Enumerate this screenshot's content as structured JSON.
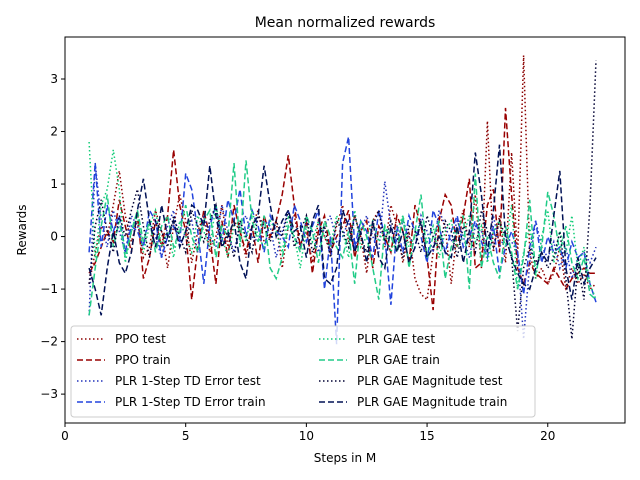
{
  "chart_data": {
    "type": "line",
    "title": "Mean normalized rewards",
    "xlabel": "Steps in M",
    "ylabel": "Rewards",
    "xlim": [
      0,
      23.2
    ],
    "ylim": [
      -3.55,
      3.8
    ],
    "xticks": [
      0,
      5,
      10,
      15,
      20
    ],
    "yticks": [
      -3,
      -2,
      -1,
      0,
      1,
      2,
      3
    ],
    "grid": false,
    "legend": "lower-left, two columns",
    "x": [
      1.0,
      1.25,
      1.5,
      1.75,
      2.0,
      2.25,
      2.5,
      2.75,
      3.0,
      3.25,
      3.5,
      3.75,
      4.0,
      4.25,
      4.5,
      4.75,
      5.0,
      5.25,
      5.5,
      5.75,
      6.0,
      6.25,
      6.5,
      6.75,
      7.0,
      7.25,
      7.5,
      7.75,
      8.0,
      8.25,
      8.5,
      8.75,
      9.0,
      9.25,
      9.5,
      9.75,
      10.0,
      10.25,
      10.5,
      10.75,
      11.0,
      11.25,
      11.5,
      11.75,
      12.0,
      12.25,
      12.5,
      12.75,
      13.0,
      13.25,
      13.5,
      13.75,
      14.0,
      14.25,
      14.5,
      14.75,
      15.0,
      15.25,
      15.5,
      15.75,
      16.0,
      16.25,
      16.5,
      16.75,
      17.0,
      17.25,
      17.5,
      17.75,
      18.0,
      18.25,
      18.5,
      18.75,
      19.0,
      19.25,
      19.5,
      19.75,
      20.0,
      20.25,
      20.5,
      20.75,
      21.0,
      21.25,
      21.5,
      21.75,
      22.0
    ],
    "series": [
      {
        "name": "PPO test",
        "color": "#8b0000",
        "dash": "dotted",
        "values": [
          -0.9,
          -0.3,
          0.2,
          0.0,
          0.6,
          1.25,
          0.4,
          -0.1,
          0.3,
          -0.4,
          -0.2,
          0.5,
          0.1,
          -0.6,
          0.2,
          0.8,
          0.3,
          -0.5,
          0.1,
          0.4,
          -0.3,
          0.0,
          0.6,
          -0.2,
          0.3,
          0.1,
          -0.4,
          0.2,
          0.5,
          -0.1,
          0.0,
          0.3,
          -0.6,
          0.2,
          0.4,
          -0.2,
          0.1,
          -0.5,
          0.3,
          0.0,
          -0.3,
          0.2,
          0.6,
          -0.1,
          0.4,
          0.0,
          -0.7,
          0.3,
          0.5,
          -0.2,
          0.6,
          0.2,
          -0.5,
          0.1,
          -0.8,
          -1.1,
          -1.2,
          -0.3,
          0.4,
          0.2,
          -0.9,
          0.1,
          0.5,
          -0.2,
          0.8,
          -0.6,
          2.2,
          -0.3,
          0.4,
          -0.5,
          1.6,
          -0.4,
          3.45,
          -0.3,
          -0.8,
          -0.6,
          -0.9,
          -0.7,
          -0.2,
          -1.0,
          -0.6,
          -0.9,
          -0.7,
          -1.0,
          -0.9
        ]
      },
      {
        "name": "PPO train",
        "color": "#990000",
        "dash": "dashed",
        "values": [
          -0.7,
          -0.5,
          -0.2,
          0.1,
          -0.1,
          0.7,
          0.2,
          -0.3,
          0.5,
          -0.8,
          -0.4,
          0.3,
          -0.2,
          0.4,
          1.65,
          0.6,
          0.1,
          -1.2,
          -0.2,
          0.5,
          0.0,
          -0.9,
          0.3,
          -0.4,
          0.6,
          0.1,
          -0.3,
          0.2,
          -0.5,
          0.4,
          0.0,
          0.3,
          0.8,
          1.55,
          0.6,
          -0.2,
          0.3,
          -0.7,
          0.1,
          0.4,
          -0.3,
          0.0,
          0.2,
          0.5,
          -0.4,
          0.1,
          0.3,
          -0.6,
          0.2,
          0.0,
          -0.3,
          0.4,
          0.1,
          -0.5,
          0.6,
          0.2,
          -0.4,
          -1.4,
          0.3,
          0.8,
          0.6,
          -0.2,
          0.4,
          1.1,
          -0.6,
          -0.5,
          0.6,
          0.9,
          -0.3,
          2.45,
          0.8,
          -0.6,
          -0.9,
          -0.5,
          -0.7,
          -0.8,
          -0.9,
          -0.6,
          -0.8,
          -1.0,
          -0.8,
          -0.7,
          -0.6,
          -0.7,
          -0.7
        ]
      },
      {
        "name": "PLR 1-Step TD Error test",
        "color": "#2233bb",
        "dash": "dotted",
        "values": [
          -1.5,
          1.4,
          0.3,
          -0.2,
          0.5,
          0.1,
          -0.3,
          0.4,
          0.2,
          -0.1,
          0.3,
          0.0,
          -0.4,
          0.2,
          0.5,
          -0.2,
          0.1,
          0.3,
          -0.3,
          0.4,
          0.0,
          -0.2,
          0.6,
          0.1,
          -0.3,
          0.2,
          0.4,
          0.0,
          -0.1,
          0.3,
          0.2,
          -0.4,
          0.1,
          0.5,
          0.0,
          -0.2,
          0.3,
          0.1,
          -0.3,
          0.2,
          0.4,
          -0.1,
          0.0,
          0.3,
          -0.2,
          0.1,
          0.4,
          0.0,
          -0.3,
          1.05,
          0.2,
          -0.1,
          0.3,
          0.0,
          -0.2,
          0.4,
          0.1,
          -0.3,
          0.5,
          0.2,
          -0.1,
          0.3,
          0.0,
          -0.4,
          0.2,
          0.1,
          -0.3,
          0.4,
          -0.2,
          0.0,
          -0.1,
          -0.3,
          -1.95,
          -0.5,
          0.3,
          -0.2,
          -0.4,
          -0.1,
          -0.6,
          -0.2,
          -0.8,
          -0.4,
          -0.3,
          -0.5,
          -0.2
        ]
      },
      {
        "name": "PLR 1-Step TD Error train",
        "color": "#2244dd",
        "dash": "dashed",
        "values": [
          -0.3,
          1.4,
          -0.2,
          0.6,
          0.1,
          0.4,
          -0.3,
          0.2,
          0.1,
          -0.2,
          0.5,
          0.3,
          -0.4,
          0.0,
          0.2,
          -0.1,
          1.2,
          0.9,
          0.1,
          -0.9,
          0.2,
          0.6,
          -0.1,
          0.7,
          0.3,
          0.9,
          0.0,
          0.5,
          0.2,
          -0.3,
          0.4,
          0.1,
          0.0,
          -0.2,
          0.6,
          0.3,
          -0.1,
          0.2,
          0.5,
          -1.0,
          0.0,
          -2.05,
          1.4,
          1.9,
          -0.2,
          0.3,
          0.1,
          -0.4,
          0.5,
          0.0,
          -1.3,
          0.2,
          -0.3,
          0.4,
          0.1,
          0.0,
          -0.5,
          0.5,
          0.2,
          -0.3,
          0.1,
          0.4,
          -0.2,
          0.0,
          0.3,
          -0.1,
          -0.4,
          0.2,
          -0.7,
          -0.2,
          0.1,
          -0.3,
          -1.1,
          -0.2,
          0.3,
          -0.5,
          0.0,
          -0.3,
          -0.2,
          -0.6,
          -0.1,
          -0.4,
          -0.3,
          -0.9,
          -1.25
        ]
      },
      {
        "name": "PLR GAE test",
        "color": "#11cc77",
        "dash": "dotted",
        "values": [
          1.8,
          -0.4,
          0.6,
          0.9,
          1.65,
          0.9,
          -0.5,
          0.1,
          0.4,
          -0.3,
          0.2,
          0.5,
          -0.2,
          0.1,
          -0.4,
          0.3,
          0.0,
          -0.3,
          0.4,
          0.1,
          -0.2,
          0.6,
          0.0,
          -0.4,
          0.2,
          0.3,
          -0.1,
          0.5,
          0.0,
          -0.2,
          0.3,
          0.1,
          -0.3,
          0.4,
          0.0,
          -0.6,
          0.2,
          -0.1,
          0.3,
          0.0,
          -0.2,
          0.4,
          0.1,
          -0.4,
          0.5,
          -0.2,
          0.0,
          0.3,
          -0.1,
          0.2,
          -0.3,
          0.1,
          0.4,
          -0.2,
          0.0,
          0.3,
          -0.1,
          0.2,
          -0.4,
          0.1,
          0.3,
          -0.2,
          0.0,
          0.4,
          -0.1,
          0.2,
          -0.5,
          0.1,
          0.3,
          -0.2,
          0.6,
          -1.0,
          -0.3,
          0.2,
          -0.8,
          0.0,
          0.5,
          -0.5,
          0.1,
          -0.3,
          0.4,
          -0.6,
          -0.2,
          -0.9,
          -1.2
        ]
      },
      {
        "name": "PLR GAE train",
        "color": "#22cc88",
        "dash": "dashed",
        "values": [
          -1.5,
          -0.6,
          0.2,
          0.8,
          -0.2,
          0.3,
          -0.4,
          0.1,
          0.5,
          -0.1,
          0.3,
          -0.3,
          0.2,
          0.4,
          -0.2,
          0.1,
          0.6,
          0.0,
          -0.3,
          0.3,
          0.5,
          -0.4,
          0.2,
          0.0,
          1.4,
          -0.2,
          1.45,
          0.3,
          -0.1,
          0.4,
          -0.6,
          -0.8,
          -0.4,
          0.2,
          0.0,
          -0.3,
          0.4,
          0.1,
          -0.5,
          0.3,
          0.0,
          -0.2,
          -0.4,
          0.1,
          -0.9,
          0.3,
          0.0,
          -0.6,
          -1.2,
          0.2,
          0.0,
          -0.3,
          0.4,
          -0.6,
          0.1,
          0.8,
          -0.4,
          0.0,
          0.3,
          -0.8,
          -0.2,
          0.1,
          0.4,
          -1.0,
          1.2,
          -0.6,
          0.0,
          -0.5,
          -0.8,
          0.2,
          -0.3,
          -1.0,
          -0.4,
          0.7,
          -0.7,
          -0.2,
          0.85,
          0.4,
          -0.3,
          0.2,
          -0.5,
          -0.8,
          -0.4,
          -1.1,
          -1.2
        ]
      },
      {
        "name": "PLR GAE Magnitude test",
        "color": "#000033",
        "dash": "dotted",
        "values": [
          -0.9,
          0.2,
          0.7,
          0.1,
          -0.3,
          0.4,
          0.0,
          0.5,
          0.9,
          0.2,
          -0.4,
          0.3,
          0.1,
          -0.2,
          0.4,
          0.0,
          -0.3,
          0.5,
          0.2,
          -0.1,
          0.3,
          0.6,
          -0.2,
          0.1,
          -0.4,
          0.3,
          0.0,
          -0.3,
          0.4,
          0.2,
          -0.1,
          0.3,
          0.0,
          0.5,
          -0.2,
          0.1,
          0.4,
          -0.3,
          0.0,
          0.2,
          -0.4,
          0.3,
          0.1,
          -0.2,
          0.4,
          0.0,
          -0.3,
          0.2,
          0.5,
          -0.1,
          0.3,
          0.0,
          -0.4,
          0.2,
          0.1,
          -0.3,
          0.4,
          0.0,
          -0.2,
          0.3,
          0.1,
          -0.4,
          0.2,
          0.0,
          -0.3,
          0.5,
          0.1,
          -0.2,
          0.3,
          0.0,
          -0.4,
          -1.8,
          -0.6,
          -0.2,
          -0.5,
          -0.3,
          -0.6,
          -0.4,
          0.1,
          -0.8,
          -1.95,
          -0.5,
          -1.2,
          0.6,
          3.35
        ]
      },
      {
        "name": "PLR GAE Magnitude train",
        "color": "#001155",
        "dash": "dashed",
        "values": [
          -0.6,
          -1.0,
          -1.5,
          -0.6,
          0.1,
          -0.5,
          -0.7,
          -0.3,
          0.5,
          1.1,
          0.3,
          -0.2,
          0.6,
          0.0,
          0.3,
          -0.2,
          0.1,
          0.6,
          0.5,
          0.2,
          1.35,
          0.4,
          -0.2,
          0.0,
          0.3,
          -0.5,
          -0.8,
          0.2,
          0.4,
          1.35,
          0.6,
          0.0,
          0.3,
          0.5,
          0.1,
          0.2,
          -0.4,
          0.3,
          0.6,
          -0.8,
          -0.9,
          -0.6,
          0.5,
          0.2,
          -0.3,
          0.1,
          -0.5,
          0.3,
          -0.4,
          -0.6,
          0.2,
          -0.3,
          0.1,
          -0.5,
          -0.2,
          0.3,
          -0.4,
          -0.2,
          0.0,
          -0.3,
          -0.4,
          0.2,
          -0.5,
          0.1,
          1.6,
          0.8,
          -0.3,
          0.5,
          1.75,
          0.0,
          -0.4,
          -0.7,
          -0.9,
          -1.0,
          -0.6,
          -0.3,
          -0.5,
          0.4,
          1.25,
          -0.6,
          -1.2,
          -0.4,
          -0.9,
          -0.6,
          -0.4
        ]
      }
    ]
  }
}
